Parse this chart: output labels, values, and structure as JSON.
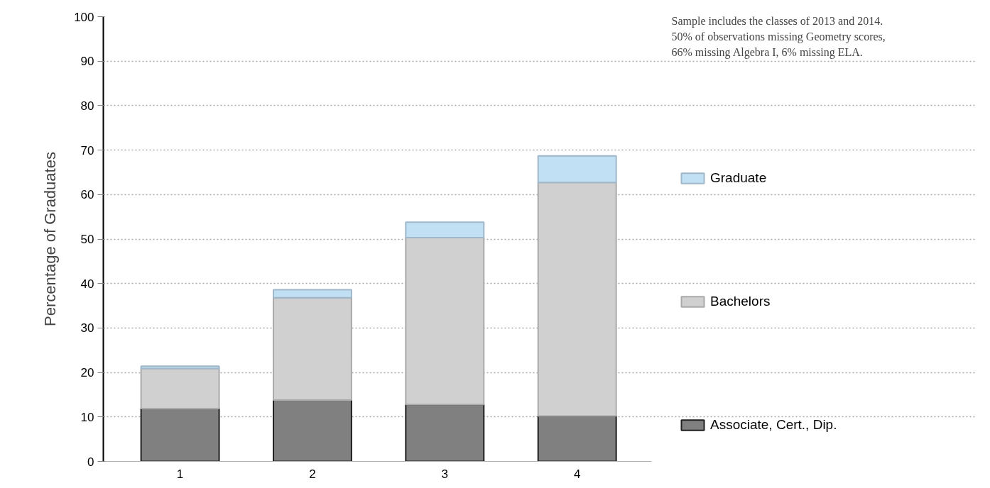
{
  "chart_data": {
    "type": "bar",
    "stacked": true,
    "ylabel": "Percentage of Graduates",
    "categories": [
      "1",
      "2",
      "3",
      "4"
    ],
    "series": [
      {
        "name": "Associate, Cert., Dip.",
        "color": "#808080",
        "values": [
          11.9,
          13.8,
          12.8,
          10.2
        ]
      },
      {
        "name": "Bachelors",
        "color": "#d0d0d0",
        "values": [
          9.0,
          23.0,
          37.5,
          52.5
        ]
      },
      {
        "name": "Graduate",
        "color": "#c2e0f4",
        "values": [
          0.5,
          1.8,
          3.5,
          6.0
        ]
      }
    ],
    "ylim": [
      0,
      100
    ],
    "yticks": [
      0,
      10,
      20,
      30,
      40,
      50,
      60,
      70,
      80,
      90,
      100
    ],
    "grid": "y",
    "legend": "right",
    "annotations": [
      "Sample includes the classes of 2013 and 2014. 50% of observations missing Geometry scores, 66% missing Algebra I, 6% missing ELA."
    ]
  }
}
